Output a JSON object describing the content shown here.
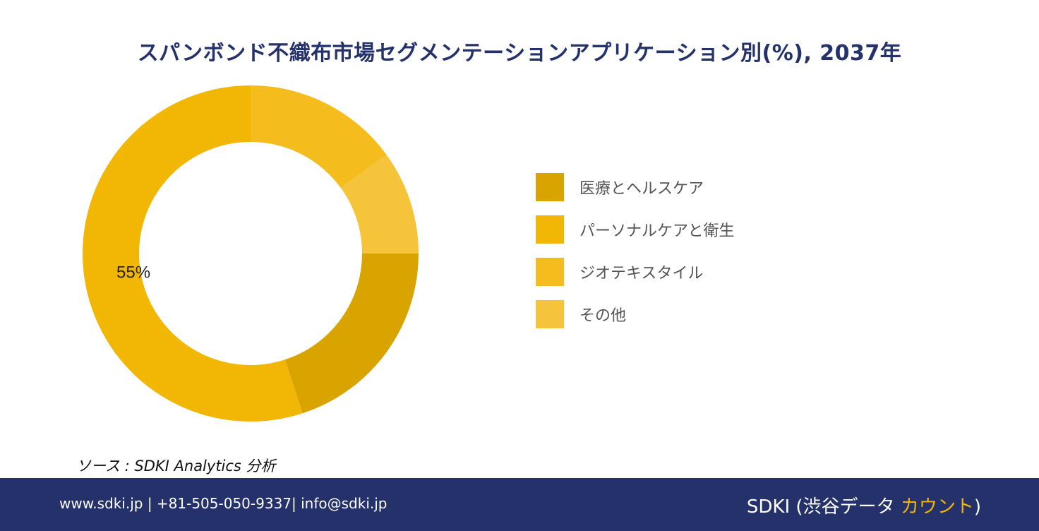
{
  "title": "スパンボンド不織布市場セグメンテーションアプリケーション別(%), 2037年",
  "chart_data": {
    "type": "pie",
    "categories": [
      "医療とヘルスケア",
      "パーソナルケアと衛生",
      "ジオテキスタイル",
      "その他"
    ],
    "values": [
      20,
      55,
      15,
      10
    ],
    "colors": [
      "#d9a300",
      "#f2b705",
      "#f4bc1c",
      "#f5c43a"
    ],
    "data_labels": [
      "",
      "55%",
      "",
      ""
    ],
    "legend_position": "right"
  },
  "source": "ソース : SDKI Analytics 分析",
  "footer": {
    "contact": "www.sdki.jp | +81-505-050-9337| info@sdki.jp",
    "brand_prefix": "SDKI (渋谷データ ",
    "brand_accent": "カウント",
    "brand_suffix": ")"
  }
}
